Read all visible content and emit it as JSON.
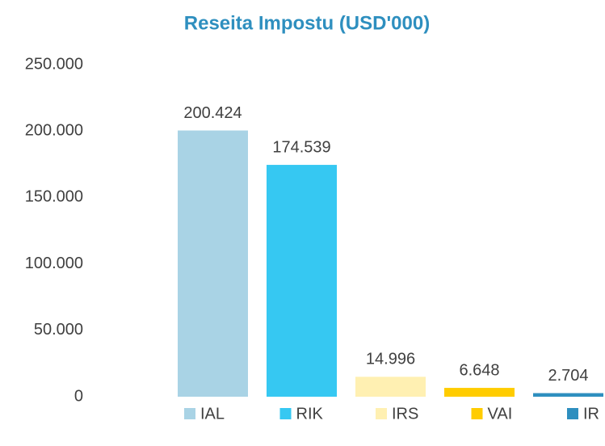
{
  "chart_data": {
    "type": "bar",
    "title": "Reseita Impostu (USD'000)",
    "categories": [
      "IAL",
      "RIK",
      "IRS",
      "VAI",
      "IR"
    ],
    "values": [
      200424,
      174539,
      14996,
      6648,
      2704
    ],
    "value_labels": [
      "200.424",
      "174.539",
      "14.996",
      "6.648",
      "2.704"
    ],
    "colors": [
      "#a9d3e5",
      "#36c8f2",
      "#fff0b2",
      "#ffcc00",
      "#2e8fbf"
    ],
    "ylim": [
      0,
      250000
    ],
    "yticks": [
      0,
      {
        "value": 50000,
        "label": "50.000"
      },
      {
        "value": 100000,
        "label": "100.000"
      },
      {
        "value": 150000,
        "label": "150.000"
      },
      {
        "value": 200000,
        "label": "200.000"
      },
      {
        "value": 250000,
        "label": "250.000"
      }
    ],
    "grid": false,
    "legend": "bottom"
  }
}
